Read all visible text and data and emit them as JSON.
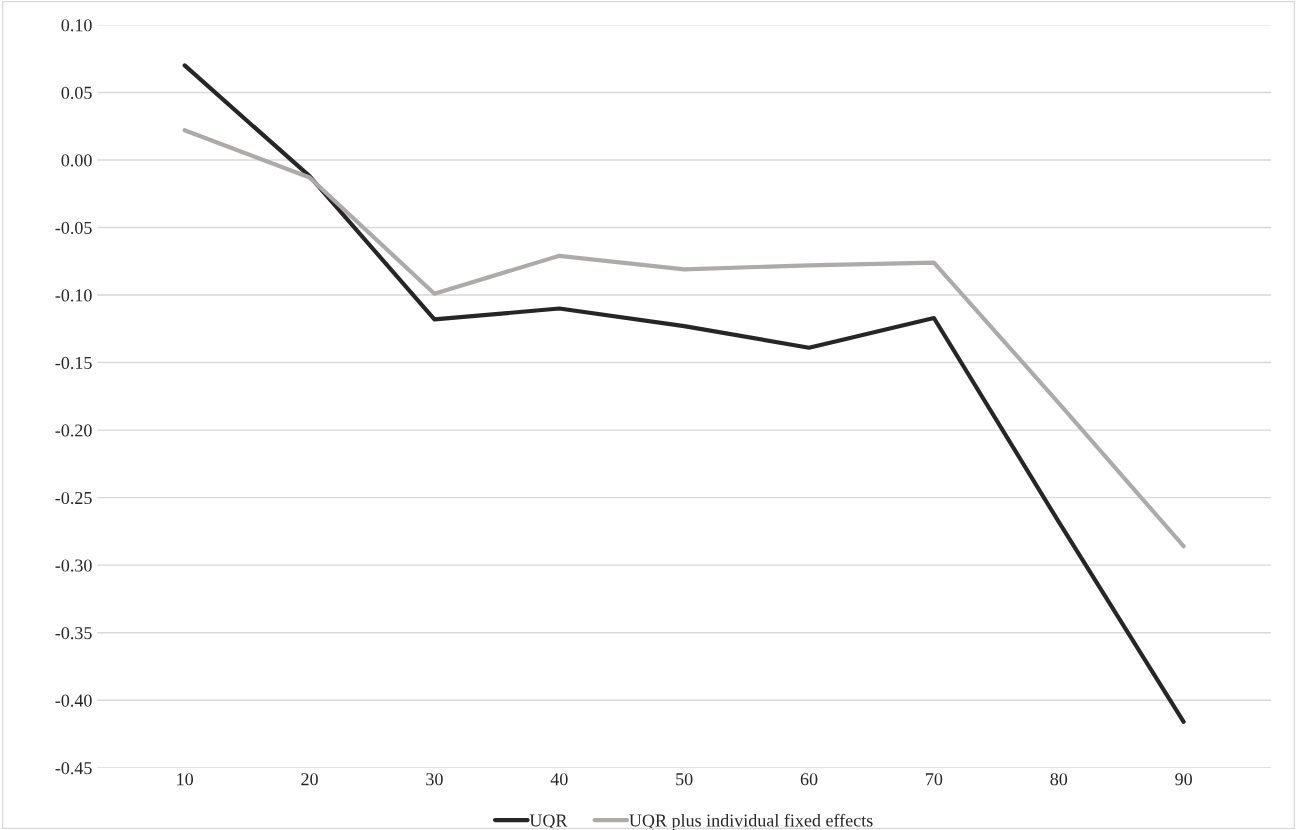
{
  "chart_data": {
    "type": "line",
    "categories": [
      "10",
      "20",
      "30",
      "40",
      "50",
      "60",
      "70",
      "80",
      "90"
    ],
    "series": [
      {
        "name": "UQR",
        "color": "#262626",
        "values": [
          0.07,
          -0.012,
          -0.118,
          -0.11,
          -0.123,
          -0.139,
          -0.117,
          -0.268,
          -0.416
        ]
      },
      {
        "name": "UQR plus individual fixed effects",
        "color": "#adaaaa",
        "values": [
          0.022,
          -0.013,
          -0.099,
          -0.071,
          -0.081,
          -0.078,
          -0.076,
          -0.18,
          -0.286
        ]
      }
    ],
    "ylim": [
      -0.45,
      0.1
    ],
    "yticks": [
      {
        "value": 0.1,
        "label": "0.10"
      },
      {
        "value": 0.05,
        "label": "0.05"
      },
      {
        "value": 0,
        "label": "0.00"
      },
      {
        "value": -0.05,
        "label": "-0.05"
      },
      {
        "value": -0.1,
        "label": "-0.10"
      },
      {
        "value": -0.15,
        "label": "-0.15"
      },
      {
        "value": -0.2,
        "label": "-0.20"
      },
      {
        "value": -0.25,
        "label": "-0.25"
      },
      {
        "value": -0.3,
        "label": "-0.30"
      },
      {
        "value": -0.35,
        "label": "-0.35"
      },
      {
        "value": -0.4,
        "label": "-0.40"
      },
      {
        "value": -0.45,
        "label": "-0.45"
      }
    ],
    "grid": "y",
    "legend": "bottom",
    "marker": "none",
    "line_style": "solid"
  }
}
